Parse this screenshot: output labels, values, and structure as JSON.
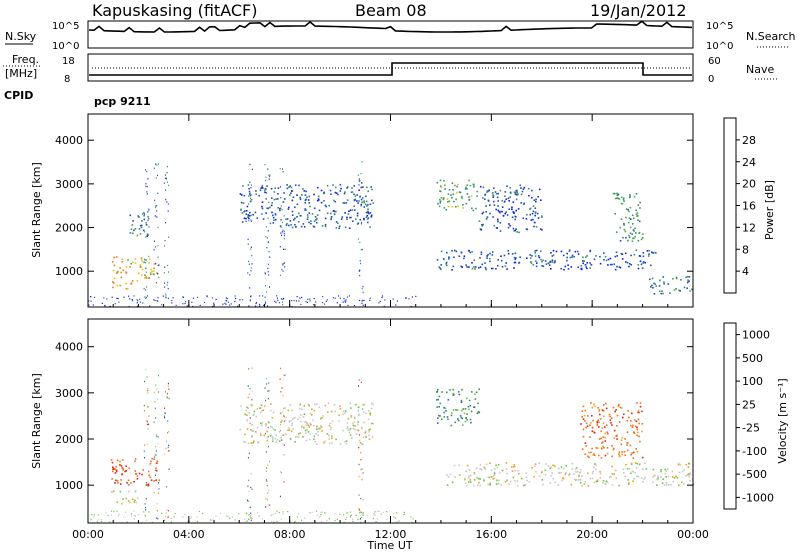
{
  "header": {
    "station": "Kapuskasing (fitACF)",
    "beam": "Beam 08",
    "date": "19/Jan/2012"
  },
  "noise_panel": {
    "left_label": "N.Sky",
    "left_ticks": [
      "10^5",
      "10^0"
    ],
    "right_label": "N.Search",
    "right_ticks": [
      "10^5",
      "10^0"
    ]
  },
  "freq_panel": {
    "left_label_line1": "Freq.",
    "left_label_line2": "[MHz]",
    "left_ticks": [
      "18",
      "8"
    ],
    "right_ticks": [
      "60",
      "0"
    ],
    "right_label": "Nave",
    "cpid_label": "CPID",
    "program": "pcp 9211"
  },
  "chart_data": [
    {
      "type": "heatmap",
      "name": "power",
      "ylabel": "Slant Range [km]",
      "xlabel": "Time UT",
      "x_tick_labels": [
        "00:00",
        "04:00",
        "08:00",
        "12:00",
        "16:00",
        "20:00",
        "00:00"
      ],
      "x_hours": [
        0,
        4,
        8,
        12,
        16,
        20,
        24
      ],
      "y_ticks": [
        1000,
        2000,
        3000,
        4000
      ],
      "y_range": [
        180,
        4600
      ],
      "colorbar": {
        "label": "Power [dB]",
        "ticks": [
          "4",
          "8",
          "12",
          "16",
          "20",
          "24",
          "28"
        ],
        "colors": [
          "#1020e8",
          "#2050b0",
          "#3c8c70",
          "#4aa84a",
          "#e8c020",
          "#f08018",
          "#e02010"
        ]
      },
      "regions": [
        {
          "t0": 0.9,
          "t1": 2.8,
          "r0": 850,
          "r1": 1350,
          "level": 0.7
        },
        {
          "t0": 0.9,
          "t1": 2.0,
          "r0": 600,
          "r1": 800,
          "level": 0.8
        },
        {
          "t0": 1.6,
          "t1": 2.4,
          "r0": 1800,
          "r1": 2400,
          "level": 0.3
        },
        {
          "t0": 6.0,
          "t1": 11.3,
          "r0": 2000,
          "r1": 3000,
          "level": 0.2
        },
        {
          "t0": 13.8,
          "t1": 22.5,
          "r0": 1050,
          "r1": 1500,
          "level": 0.15
        },
        {
          "t0": 13.8,
          "t1": 15.5,
          "r0": 2400,
          "r1": 3100,
          "level": 0.45
        },
        {
          "t0": 15.5,
          "t1": 18.0,
          "r0": 1900,
          "r1": 3000,
          "level": 0.15
        },
        {
          "t0": 20.8,
          "t1": 22.0,
          "r0": 1700,
          "r1": 2800,
          "level": 0.4
        },
        {
          "t0": 22.2,
          "t1": 24.0,
          "r0": 500,
          "r1": 900,
          "level": 0.3
        }
      ]
    },
    {
      "type": "heatmap",
      "name": "velocity",
      "ylabel": "Slant Range [km]",
      "xlabel": "Time UT",
      "x_tick_labels": [
        "00:00",
        "04:00",
        "08:00",
        "12:00",
        "16:00",
        "20:00",
        "00:00"
      ],
      "x_hours": [
        0,
        4,
        8,
        12,
        16,
        20,
        24
      ],
      "y_ticks": [
        1000,
        2000,
        3000,
        4000
      ],
      "y_range": [
        180,
        4600
      ],
      "colorbar": {
        "label": "Velocity [m s⁻¹]",
        "ticks": [
          "1000",
          "500",
          "100",
          "25",
          "-25",
          "-100",
          "-500",
          "-1000"
        ],
        "colors": [
          "#1a3aa8",
          "#2e66b8",
          "#3c9050",
          "#6cc840",
          "#c8c8c8",
          "#f0a020",
          "#f07018",
          "#e82010"
        ]
      },
      "regions": [
        {
          "t0": 0.9,
          "t1": 2.8,
          "r0": 1000,
          "r1": 1600,
          "level": -0.6
        },
        {
          "t0": 0.9,
          "t1": 2.0,
          "r0": 600,
          "r1": 900,
          "level": 0.0
        },
        {
          "t0": 6.0,
          "t1": 11.3,
          "r0": 1900,
          "r1": 2800,
          "level": 0.0
        },
        {
          "t0": 14.0,
          "t1": 24.0,
          "r0": 1000,
          "r1": 1500,
          "level": 0.0
        },
        {
          "t0": 13.8,
          "t1": 15.5,
          "r0": 2300,
          "r1": 3100,
          "level": 0.5
        },
        {
          "t0": 19.5,
          "t1": 22.0,
          "r0": 1600,
          "r1": 2800,
          "level": -0.5
        }
      ]
    }
  ]
}
